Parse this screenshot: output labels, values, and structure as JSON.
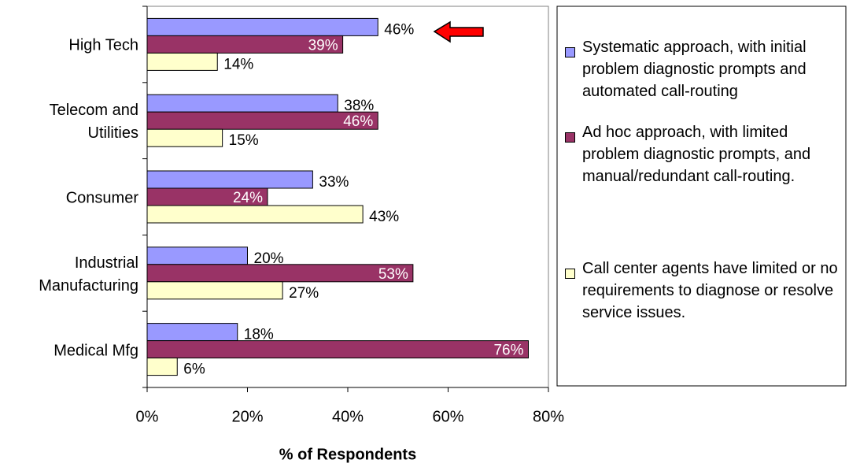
{
  "chart_data": {
    "type": "hbar",
    "categories": [
      "High Tech",
      "Telecom and Utilities",
      "Consumer",
      "Industrial Manufacturing",
      "Medical Mfg"
    ],
    "series": [
      {
        "name": "Systematic approach, with initial problem diagnostic prompts and automated call-routing",
        "color": "#9999ff",
        "values": [
          46,
          38,
          33,
          20,
          18
        ],
        "value_labels": [
          "46%",
          "38%",
          "33%",
          "20%",
          "18%"
        ]
      },
      {
        "name": "Ad hoc approach, with limited problem diagnostic prompts, and manual/redundant call-routing.",
        "color": "#993366",
        "values": [
          39,
          46,
          24,
          53,
          76
        ],
        "value_labels": [
          "39%",
          "46%",
          "24%",
          "53%",
          "76%"
        ]
      },
      {
        "name": "Call center agents have limited or no requirements to diagnose or resolve service issues.",
        "color": "#ffffcc",
        "values": [
          14,
          15,
          43,
          27,
          6
        ],
        "value_labels": [
          "14%",
          "15%",
          "43%",
          "27%",
          "6%"
        ]
      }
    ],
    "xlabel": "% of Respondents",
    "xlim": [
      0,
      80
    ],
    "xticks": [
      {
        "value": 0,
        "label": "0%"
      },
      {
        "value": 20,
        "label": "20%"
      },
      {
        "value": 40,
        "label": "40%"
      },
      {
        "value": 60,
        "label": "60%"
      },
      {
        "value": 80,
        "label": "80%"
      }
    ],
    "grid": false
  }
}
